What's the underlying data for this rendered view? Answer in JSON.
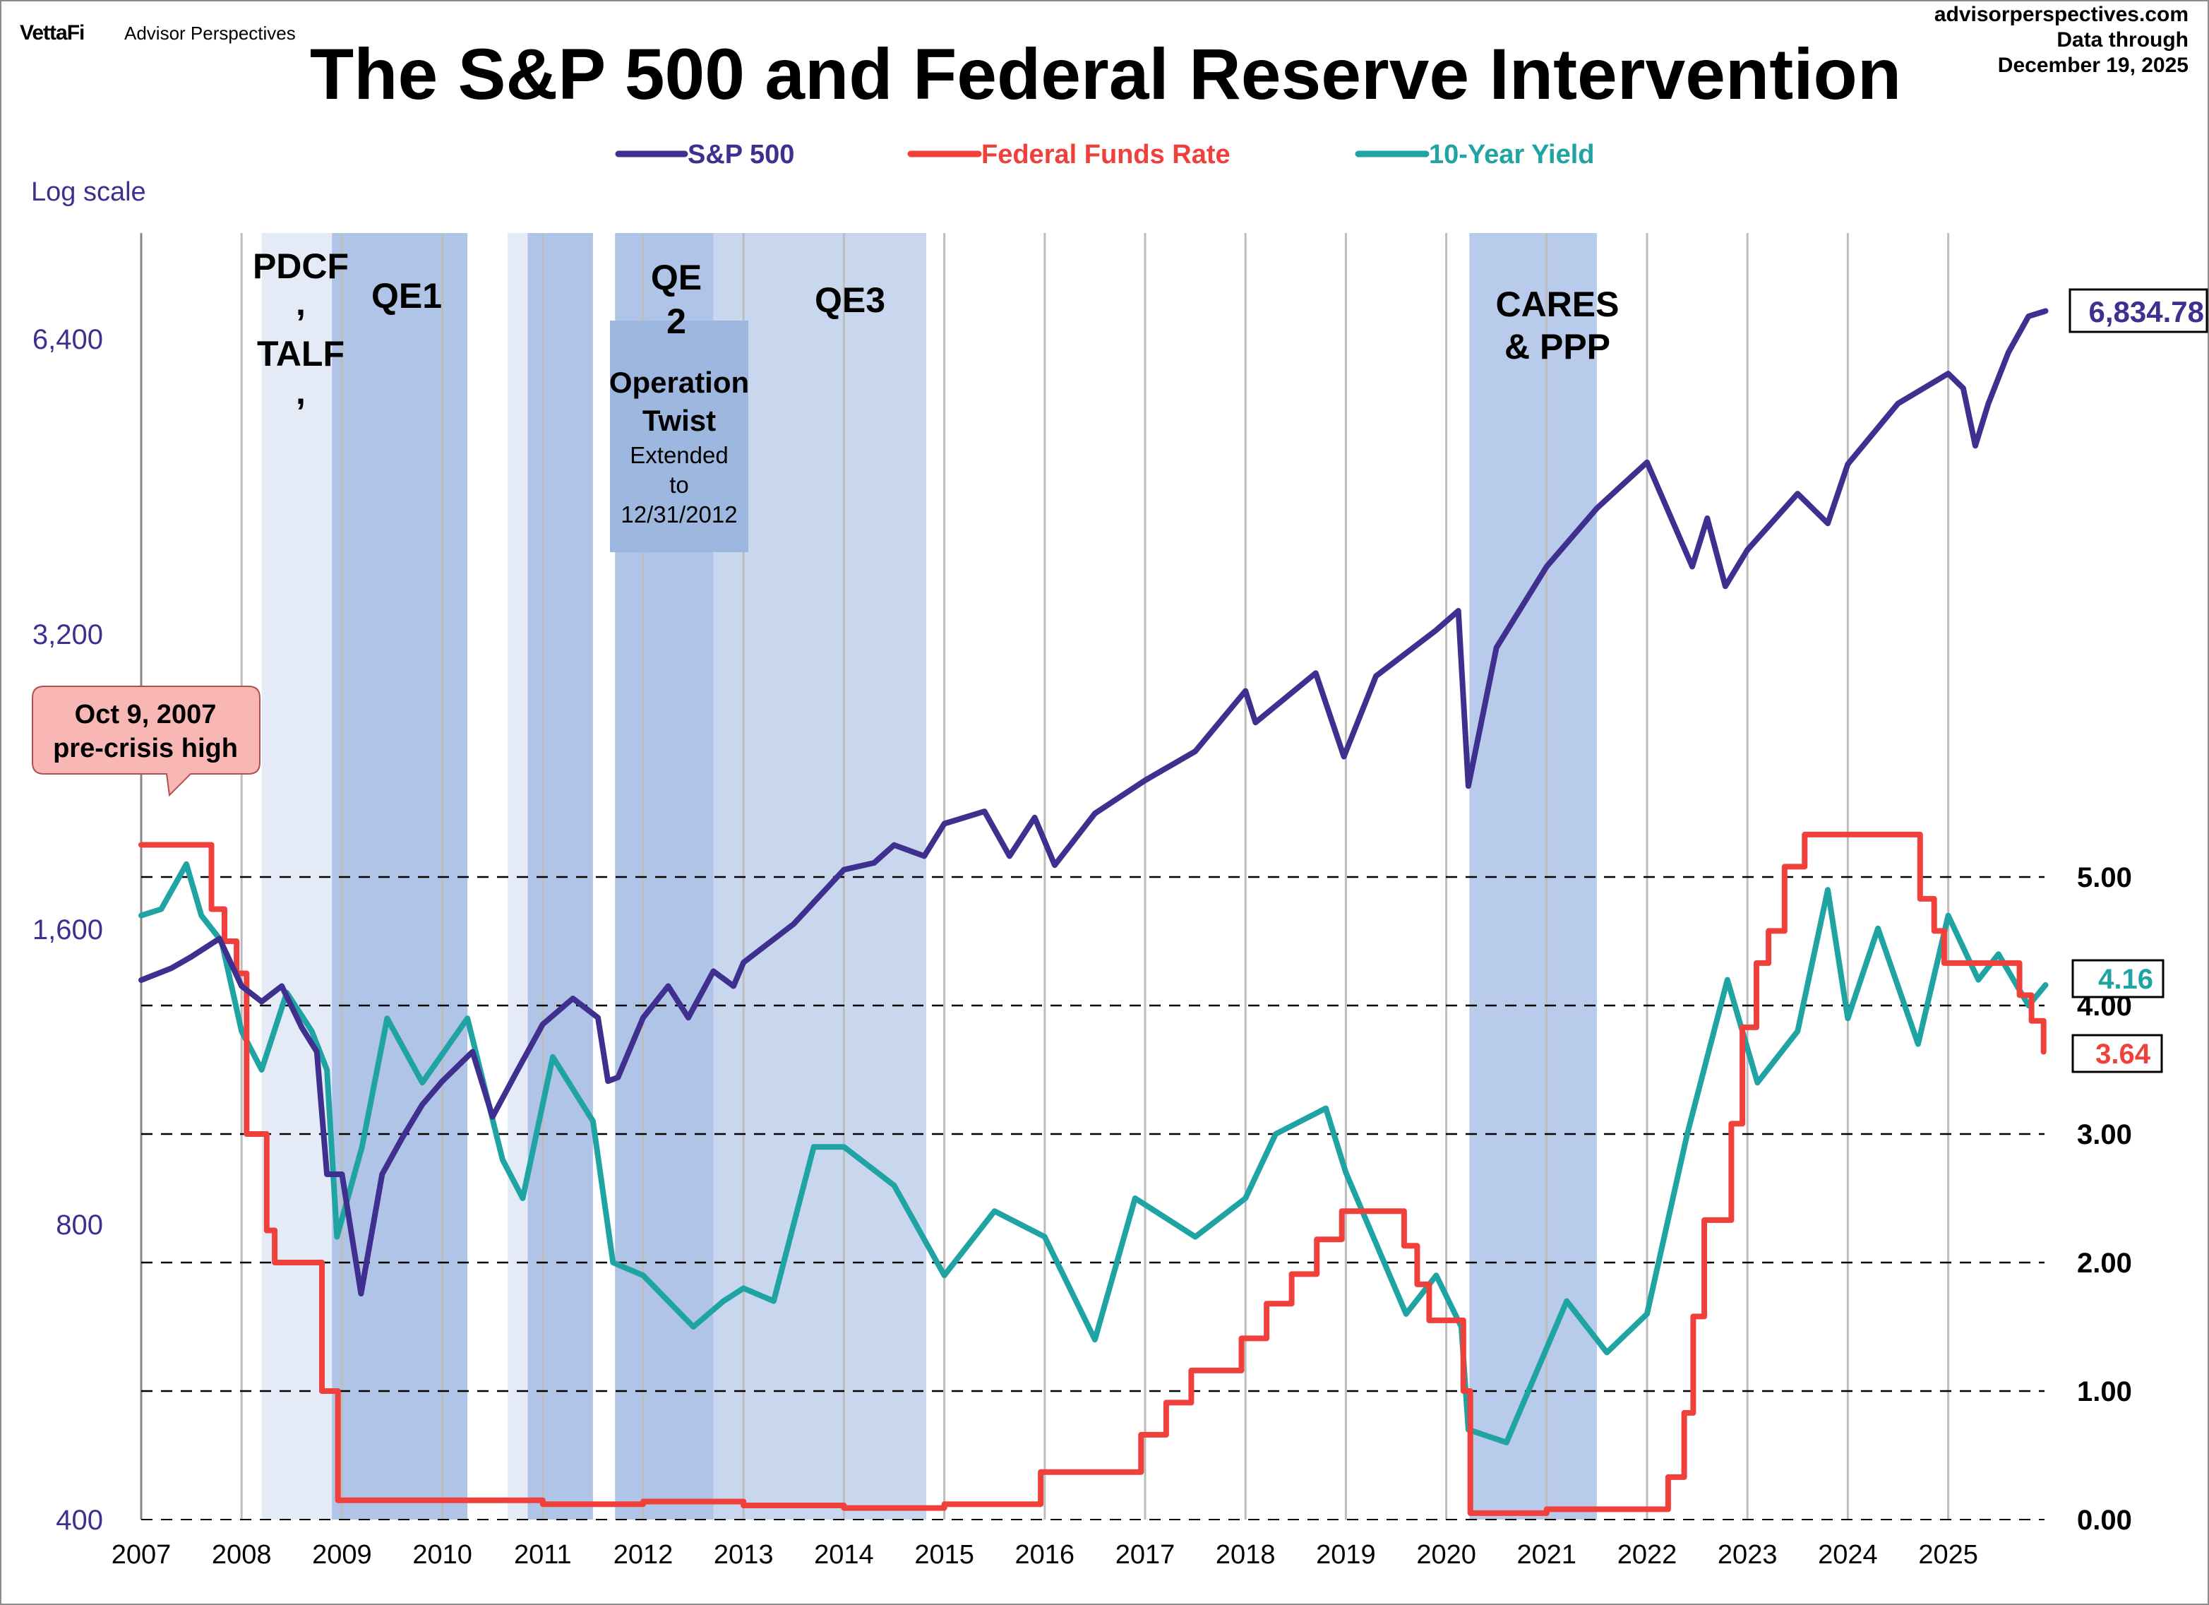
{
  "header": {
    "logo_text": "VettaFi",
    "publisher": "Advisor Perspectives",
    "site": "advisorperspectives.com",
    "data_through_label": "Data through",
    "data_through_date": "December 19, 2025"
  },
  "colors": {
    "sp500": "#3f2f8f",
    "fed_funds": "#f0403c",
    "ten_year": "#1fa3a3",
    "band_light": "#e4ebf6",
    "band_dark": "#afc4e6",
    "band_qe3": "#c8d7ee",
    "band_cares": "#b8cbea",
    "callout_fill": "#f8b6b4"
  },
  "chart_data": {
    "type": "line",
    "title": "The S&P 500 and Federal Reserve Intervention",
    "left_axis": {
      "label": "Log scale",
      "scale": "log",
      "range": [
        400,
        9000
      ],
      "ticks": [
        400,
        800,
        1600,
        3200,
        6400
      ],
      "tick_labels": [
        "400",
        "800",
        "1,600",
        "3,200",
        "6,400"
      ]
    },
    "right_axis": {
      "scale": "linear",
      "range": [
        0,
        6
      ],
      "ticks": [
        0,
        1,
        2,
        3,
        4,
        5
      ],
      "tick_labels": [
        "0.00",
        "1.00",
        "2.00",
        "3.00",
        "4.00",
        "5.00"
      ]
    },
    "x_axis": {
      "range": [
        2007,
        2026
      ],
      "ticks": [
        2007,
        2008,
        2009,
        2010,
        2011,
        2012,
        2013,
        2014,
        2015,
        2016,
        2017,
        2018,
        2019,
        2020,
        2021,
        2022,
        2023,
        2024,
        2025
      ],
      "tick_labels": [
        "2007",
        "2008",
        "2009",
        "2010",
        "2011",
        "2012",
        "2013",
        "2014",
        "2015",
        "2016",
        "2017",
        "2018",
        "2019",
        "2020",
        "2021",
        "2022",
        "2023",
        "2024",
        "2025"
      ]
    },
    "grid": {
      "vertical": true,
      "horizontal_dashed_right_axis": true
    },
    "legend": {
      "placement": "top-center"
    },
    "series": [
      {
        "name": "S&P 500",
        "axis": "left",
        "last_value_label": "6,834.78",
        "x": [
          2007.0,
          2007.3,
          2007.5,
          2007.78,
          2008.0,
          2008.2,
          2008.4,
          2008.6,
          2008.75,
          2008.85,
          2009.0,
          2009.19,
          2009.4,
          2009.6,
          2009.8,
          2010.0,
          2010.3,
          2010.5,
          2010.75,
          2011.0,
          2011.3,
          2011.55,
          2011.65,
          2011.75,
          2012.0,
          2012.25,
          2012.45,
          2012.7,
          2012.9,
          2013.0,
          2013.5,
          2014.0,
          2014.3,
          2014.5,
          2014.8,
          2015.0,
          2015.4,
          2015.65,
          2015.9,
          2016.1,
          2016.5,
          2017.0,
          2017.5,
          2018.0,
          2018.1,
          2018.7,
          2018.98,
          2019.3,
          2019.9,
          2020.12,
          2020.22,
          2020.5,
          2021.0,
          2021.5,
          2022.0,
          2022.45,
          2022.6,
          2022.78,
          2023.0,
          2023.5,
          2023.8,
          2024.0,
          2024.5,
          2025.0,
          2025.15,
          2025.27,
          2025.4,
          2025.6,
          2025.8,
          2025.97
        ],
        "values": [
          1420,
          1460,
          1500,
          1565,
          1400,
          1350,
          1400,
          1270,
          1200,
          900,
          900,
          680,
          900,
          980,
          1060,
          1120,
          1200,
          1030,
          1150,
          1280,
          1360,
          1300,
          1120,
          1130,
          1300,
          1400,
          1300,
          1450,
          1400,
          1480,
          1620,
          1840,
          1870,
          1950,
          1900,
          2050,
          2110,
          1900,
          2080,
          1860,
          2100,
          2270,
          2430,
          2800,
          2600,
          2920,
          2400,
          2900,
          3230,
          3380,
          2240,
          3100,
          3750,
          4300,
          4790,
          3750,
          4200,
          3580,
          3900,
          4450,
          4150,
          4770,
          5500,
          5900,
          5700,
          4980,
          5500,
          6200,
          6750,
          6834.78
        ]
      },
      {
        "name": "Federal Funds Rate",
        "axis": "right",
        "last_value_label": "3.64",
        "step": true,
        "x": [
          2007.0,
          2007.7,
          2007.83,
          2007.95,
          2008.05,
          2008.25,
          2008.33,
          2008.8,
          2008.96,
          2010.0,
          2011.0,
          2012.0,
          2013.0,
          2014.0,
          2015.0,
          2015.96,
          2016.96,
          2017.21,
          2017.46,
          2017.96,
          2018.21,
          2018.46,
          2018.71,
          2018.96,
          2019.58,
          2019.71,
          2019.83,
          2020.17,
          2020.24,
          2021.0,
          2022.21,
          2022.37,
          2022.46,
          2022.57,
          2022.84,
          2022.95,
          2023.09,
          2023.21,
          2023.37,
          2023.57,
          2024.72,
          2024.86,
          2024.96,
          2025.71,
          2025.83,
          2025.95
        ],
        "values": [
          5.25,
          4.75,
          4.5,
          4.25,
          3.0,
          2.25,
          2.0,
          1.0,
          0.15,
          0.15,
          0.12,
          0.14,
          0.11,
          0.09,
          0.12,
          0.37,
          0.66,
          0.91,
          1.16,
          1.41,
          1.68,
          1.91,
          2.18,
          2.4,
          2.13,
          1.83,
          1.55,
          1.0,
          0.05,
          0.08,
          0.33,
          0.83,
          1.58,
          2.33,
          3.08,
          3.83,
          4.33,
          4.58,
          5.08,
          5.33,
          4.83,
          4.58,
          4.33,
          4.08,
          3.88,
          3.64
        ]
      },
      {
        "name": "10-Year Yield",
        "axis": "right",
        "last_value_label": "4.16",
        "x": [
          2007.0,
          2007.2,
          2007.45,
          2007.6,
          2007.8,
          2008.0,
          2008.2,
          2008.45,
          2008.7,
          2008.85,
          2008.95,
          2009.2,
          2009.45,
          2009.8,
          2010.25,
          2010.6,
          2010.8,
          2011.1,
          2011.5,
          2011.7,
          2012.0,
          2012.5,
          2012.8,
          2013.0,
          2013.3,
          2013.7,
          2014.0,
          2014.5,
          2015.0,
          2015.5,
          2016.0,
          2016.5,
          2016.9,
          2017.5,
          2018.0,
          2018.3,
          2018.8,
          2019.0,
          2019.6,
          2019.9,
          2020.15,
          2020.22,
          2020.6,
          2021.2,
          2021.6,
          2022.0,
          2022.4,
          2022.8,
          2023.1,
          2023.5,
          2023.8,
          2024.0,
          2024.3,
          2024.7,
          2025.0,
          2025.3,
          2025.5,
          2025.8,
          2025.97
        ],
        "values": [
          4.7,
          4.75,
          5.1,
          4.7,
          4.5,
          3.8,
          3.5,
          4.1,
          3.8,
          3.5,
          2.2,
          2.9,
          3.9,
          3.4,
          3.9,
          2.8,
          2.5,
          3.6,
          3.1,
          2.0,
          1.9,
          1.5,
          1.7,
          1.8,
          1.7,
          2.9,
          2.9,
          2.6,
          1.9,
          2.4,
          2.2,
          1.4,
          2.5,
          2.2,
          2.5,
          3.0,
          3.2,
          2.7,
          1.6,
          1.9,
          1.5,
          0.7,
          0.6,
          1.7,
          1.3,
          1.6,
          3.0,
          4.2,
          3.4,
          3.8,
          4.9,
          3.9,
          4.6,
          3.7,
          4.7,
          4.2,
          4.4,
          4.0,
          4.16
        ]
      }
    ],
    "annotations": {
      "bands": [
        {
          "label": "PDCF, TALF,",
          "start": 2008.2,
          "end": 2008.9,
          "shade": "band_light"
        },
        {
          "label": "QE1",
          "start": 2008.9,
          "end": 2010.25,
          "shade": "band_dark"
        },
        {
          "label": "",
          "start": 2010.65,
          "end": 2010.85,
          "shade": "band_light"
        },
        {
          "label": "QE 2",
          "start": 2010.85,
          "end": 2011.5,
          "shade": "band_dark"
        },
        {
          "label": "Operation Twist",
          "start": 2011.72,
          "end": 2012.7,
          "shade": "band_dark"
        },
        {
          "label": "QE3",
          "start": 2012.7,
          "end": 2014.82,
          "shade": "band_qe3"
        },
        {
          "label": "CARES & PPP",
          "start": 2020.23,
          "end": 2021.5,
          "shade": "band_cares"
        }
      ],
      "pdcf_lines": [
        "PDCF",
        ",",
        "TALF",
        ","
      ],
      "qe1": "QE1",
      "qe2_lines": [
        "QE",
        "2"
      ],
      "twist_lines": [
        "Operation",
        "Twist"
      ],
      "twist_sub_lines": [
        "Extended",
        "to",
        "12/31/2012"
      ],
      "qe3": "QE3",
      "cares_lines": [
        "CARES",
        "& PPP"
      ],
      "callout_lines": [
        "Oct 9, 2007",
        "pre-crisis high"
      ]
    }
  }
}
